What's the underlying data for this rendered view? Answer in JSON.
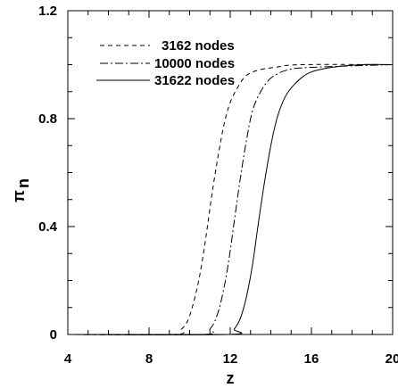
{
  "chart_data": {
    "type": "line",
    "title": "",
    "xlabel": "z",
    "ylabel": "π",
    "ylabel_sub": "n",
    "xlim": [
      4,
      20
    ],
    "ylim": [
      0,
      1.2
    ],
    "x_ticks": [
      "4",
      "8",
      "12",
      "16",
      "20"
    ],
    "y_ticks": [
      "0",
      "0.4",
      "0.8",
      "1.2"
    ],
    "legend_position": "top-left",
    "grid": false,
    "series": [
      {
        "name": "3162 nodes",
        "dash": "dashed",
        "points": [
          [
            4,
            0
          ],
          [
            9.2,
            0
          ],
          [
            9.6,
            0.02
          ],
          [
            9.9,
            0.05
          ],
          [
            10.2,
            0.12
          ],
          [
            10.5,
            0.22
          ],
          [
            10.8,
            0.36
          ],
          [
            11.1,
            0.52
          ],
          [
            11.4,
            0.66
          ],
          [
            11.7,
            0.78
          ],
          [
            12.0,
            0.86
          ],
          [
            12.4,
            0.92
          ],
          [
            12.8,
            0.96
          ],
          [
            13.4,
            0.98
          ],
          [
            14.2,
            0.99
          ],
          [
            15.5,
            1.0
          ],
          [
            20,
            1.0
          ]
        ]
      },
      {
        "name": "10000 nodes",
        "dash": "dash-dot",
        "points": [
          [
            4,
            0
          ],
          [
            10.6,
            0
          ],
          [
            11.0,
            0.02
          ],
          [
            11.3,
            0.06
          ],
          [
            11.6,
            0.14
          ],
          [
            11.9,
            0.26
          ],
          [
            12.2,
            0.42
          ],
          [
            12.5,
            0.58
          ],
          [
            12.8,
            0.72
          ],
          [
            13.1,
            0.83
          ],
          [
            13.5,
            0.9
          ],
          [
            14.0,
            0.95
          ],
          [
            14.8,
            0.98
          ],
          [
            16.0,
            0.99
          ],
          [
            20,
            1.0
          ]
        ]
      },
      {
        "name": "31622 nodes",
        "dash": "solid",
        "points": [
          [
            4,
            0
          ],
          [
            11.9,
            0
          ],
          [
            12.2,
            0.02
          ],
          [
            12.5,
            0.06
          ],
          [
            12.8,
            0.14
          ],
          [
            13.1,
            0.26
          ],
          [
            13.4,
            0.42
          ],
          [
            13.7,
            0.57
          ],
          [
            14.0,
            0.7
          ],
          [
            14.3,
            0.8
          ],
          [
            14.7,
            0.88
          ],
          [
            15.2,
            0.93
          ],
          [
            15.9,
            0.97
          ],
          [
            17.0,
            0.99
          ],
          [
            18.5,
            1.0
          ],
          [
            20,
            1.0
          ]
        ]
      }
    ]
  }
}
